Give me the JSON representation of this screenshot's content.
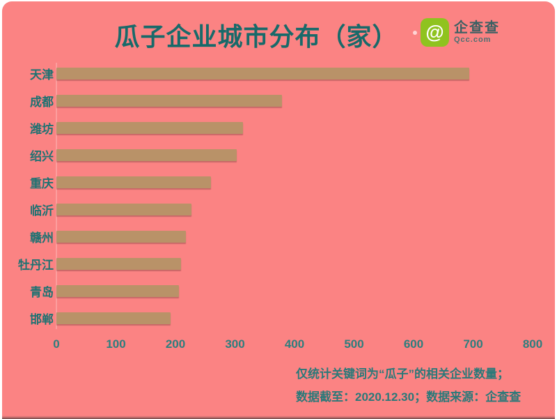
{
  "title": "瓜子企业城市分布（家）",
  "logo": {
    "brand": "企查查",
    "domain": "Qcc.com",
    "icon": "at-spiral-icon",
    "icon_glyph": "@",
    "green": "#8fc31f"
  },
  "chart_data": {
    "type": "bar",
    "orientation": "horizontal",
    "title": "瓜子企业城市分布（家）",
    "categories": [
      "天津",
      "成都",
      "潍坊",
      "绍兴",
      "重庆",
      "临沂",
      "赣州",
      "牡丹江",
      "青岛",
      "邯郸"
    ],
    "values": [
      693,
      379,
      313,
      303,
      260,
      227,
      217,
      209,
      206,
      192
    ],
    "xlabel": "",
    "ylabel": "",
    "xlim": [
      0,
      800
    ],
    "x_ticks": [
      0,
      100,
      200,
      300,
      400,
      500,
      600,
      700,
      800
    ],
    "grid": false,
    "legend": false,
    "bar_color": "#b99268",
    "background_color": "#fb8383",
    "label_color": "#1e7272",
    "tick_color": "#2e7e7e"
  },
  "footer": {
    "line1": "仅统计关键词为“瓜子”的相关企业数量；",
    "line2": "数据截至：2020.12.30；数据来源：企查查"
  },
  "colors": {
    "title": "#186a6a",
    "footer": "#2a7979",
    "card": "#fb8383",
    "bottom_edge": "#6d4b4b"
  }
}
